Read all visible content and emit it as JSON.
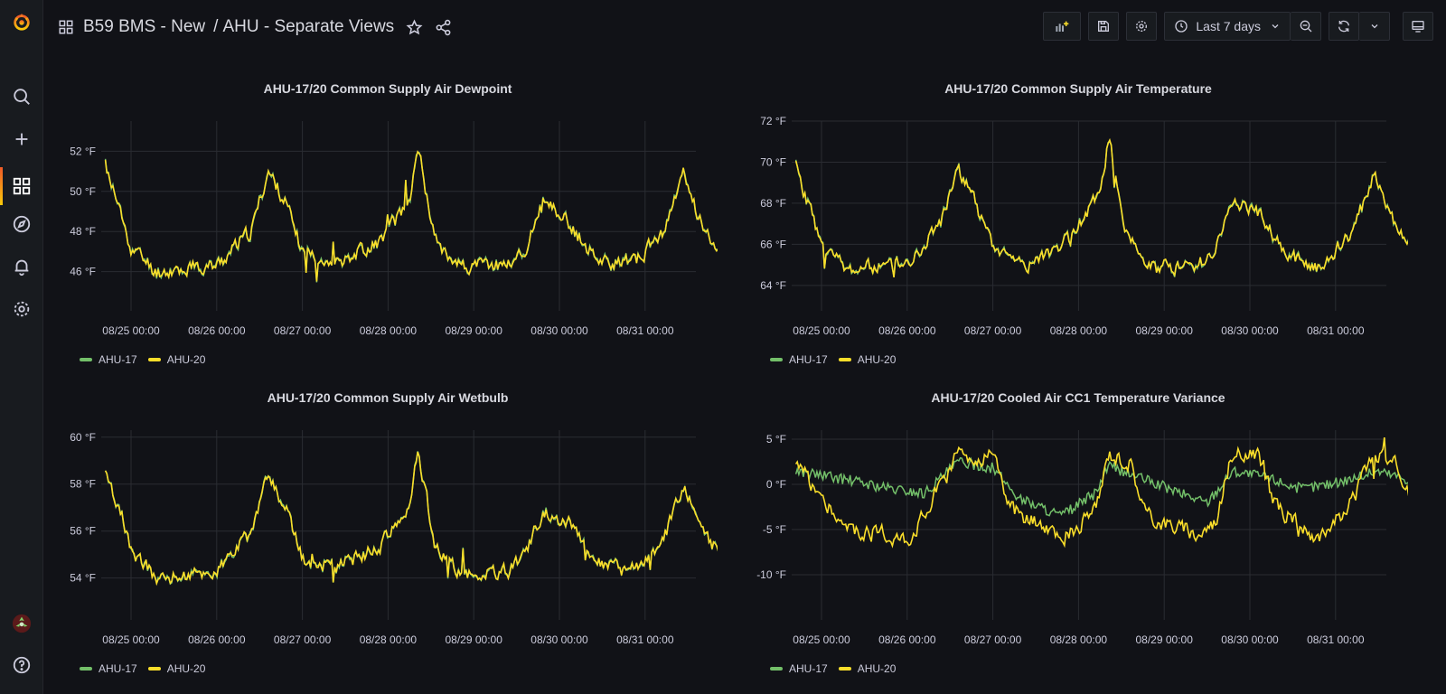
{
  "header": {
    "folder": "B59 BMS - New",
    "separator": "/",
    "dashboard": "AHU - Separate Views",
    "time_range": "Last 7 days"
  },
  "icons": {
    "logo": "grafana-logo",
    "apps": "apps-icon",
    "star": "star-icon",
    "share": "share-icon",
    "add_panel": "add-panel-icon",
    "save": "save-icon",
    "settings": "gear-icon",
    "clock": "clock-icon",
    "zoom_out": "zoom-out-icon",
    "refresh": "refresh-icon",
    "tv": "tv-mode-icon"
  },
  "sidebar": {
    "items": [
      "search-icon",
      "plus-icon",
      "dashboards-icon",
      "explore-icon",
      "alerting-icon",
      "gear-icon"
    ],
    "bottom": [
      "avatar",
      "help-icon"
    ]
  },
  "colors": {
    "ahu17": "#73bf69",
    "ahu20": "#fade2a",
    "accent": "#f05a28"
  },
  "panels": [
    {
      "title": "AHU-17/20 Common Supply Air Dewpoint",
      "legend": [
        "AHU-17",
        "AHU-20"
      ],
      "chart_data": {
        "type": "line",
        "x_ticks": [
          "08/25 00:00",
          "08/26 00:00",
          "08/27 00:00",
          "08/28 00:00",
          "08/29 00:00",
          "08/30 00:00",
          "08/31 00:00"
        ],
        "y_ticks": [
          "46 °F",
          "48 °F",
          "50 °F",
          "52 °F"
        ],
        "ylim": [
          44.5,
          53.5
        ],
        "series": [
          {
            "name": "AHU-17",
            "color": "#73bf69"
          },
          {
            "name": "AHU-20",
            "color": "#fade2a"
          }
        ],
        "profile": [
          [
            -0.3,
            51.3
          ],
          [
            0.0,
            47.2
          ],
          [
            0.3,
            46.0
          ],
          [
            1.0,
            46.3
          ],
          [
            1.4,
            48.0
          ],
          [
            1.6,
            51.0
          ],
          [
            1.8,
            49.5
          ],
          [
            2.0,
            47.0
          ],
          [
            2.4,
            46.5
          ],
          [
            2.9,
            47.5
          ],
          [
            3.25,
            49.5
          ],
          [
            3.35,
            52.3
          ],
          [
            3.55,
            47.5
          ],
          [
            3.9,
            46.2
          ],
          [
            4.4,
            46.4
          ],
          [
            4.6,
            47.0
          ],
          [
            4.8,
            49.5
          ],
          [
            5.1,
            48.5
          ],
          [
            5.4,
            46.8
          ],
          [
            5.8,
            46.2
          ],
          [
            6.2,
            47.8
          ],
          [
            6.45,
            50.8
          ],
          [
            6.7,
            48.0
          ],
          [
            7.0,
            46.8
          ],
          [
            7.5,
            46.8
          ],
          [
            7.7,
            49.8
          ],
          [
            8.0,
            50.0
          ],
          [
            8.2,
            47.8
          ],
          [
            8.4,
            46.2
          ],
          [
            9.0,
            46.4
          ],
          [
            9.3,
            47.5
          ],
          [
            9.6,
            52.5
          ],
          [
            9.85,
            48.5
          ],
          [
            10.1,
            47.0
          ],
          [
            10.6,
            47.0
          ],
          [
            10.9,
            47.5
          ],
          [
            11.0,
            51.6
          ],
          [
            11.15,
            48.8
          ]
        ],
        "noise": 0.6,
        "seed": 11
      }
    },
    {
      "title": "AHU-17/20 Common Supply Air Temperature",
      "legend": [
        "AHU-17",
        "AHU-20"
      ],
      "chart_data": {
        "type": "line",
        "x_ticks": [
          "08/25 00:00",
          "08/26 00:00",
          "08/27 00:00",
          "08/28 00:00",
          "08/29 00:00",
          "08/30 00:00",
          "08/31 00:00"
        ],
        "y_ticks": [
          "64 °F",
          "66 °F",
          "68 °F",
          "70 °F",
          "72 °F"
        ],
        "ylim": [
          63.2,
          72.0
        ],
        "series": [
          {
            "name": "AHU-17",
            "color": "#73bf69"
          },
          {
            "name": "AHU-20",
            "color": "#fade2a"
          }
        ],
        "profile": [
          [
            -0.3,
            69.8
          ],
          [
            0.0,
            66.0
          ],
          [
            0.3,
            64.8
          ],
          [
            1.0,
            65.0
          ],
          [
            1.4,
            67.2
          ],
          [
            1.6,
            69.7
          ],
          [
            1.8,
            68.0
          ],
          [
            2.0,
            65.8
          ],
          [
            2.4,
            65.0
          ],
          [
            2.9,
            66.3
          ],
          [
            3.25,
            68.5
          ],
          [
            3.35,
            71.2
          ],
          [
            3.55,
            66.5
          ],
          [
            3.9,
            64.8
          ],
          [
            4.4,
            65.0
          ],
          [
            4.6,
            65.8
          ],
          [
            4.8,
            68.2
          ],
          [
            5.1,
            67.5
          ],
          [
            5.4,
            65.5
          ],
          [
            5.8,
            64.9
          ],
          [
            6.2,
            66.5
          ],
          [
            6.45,
            69.5
          ],
          [
            6.7,
            67.0
          ],
          [
            7.0,
            65.2
          ],
          [
            7.5,
            65.4
          ],
          [
            7.7,
            68.0
          ],
          [
            8.0,
            68.2
          ],
          [
            8.2,
            66.3
          ],
          [
            8.4,
            65.0
          ],
          [
            9.0,
            65.0
          ],
          [
            9.3,
            66.0
          ],
          [
            9.6,
            70.9
          ],
          [
            9.85,
            67.0
          ],
          [
            10.1,
            65.3
          ],
          [
            10.6,
            65.4
          ],
          [
            10.9,
            66.0
          ],
          [
            11.0,
            70.1
          ],
          [
            11.15,
            67.3
          ]
        ],
        "noise": 0.55,
        "seed": 23
      }
    },
    {
      "title": "AHU-17/20 Common Supply Air Wetbulb",
      "legend": [
        "AHU-17",
        "AHU-20"
      ],
      "chart_data": {
        "type": "line",
        "x_ticks": [
          "08/25 00:00",
          "08/26 00:00",
          "08/27 00:00",
          "08/28 00:00",
          "08/29 00:00",
          "08/30 00:00",
          "08/31 00:00"
        ],
        "y_ticks": [
          "54 °F",
          "56 °F",
          "58 °F",
          "60 °F"
        ],
        "ylim": [
          52.6,
          60.3
        ],
        "series": [
          {
            "name": "AHU-17",
            "color": "#73bf69"
          },
          {
            "name": "AHU-20",
            "color": "#fade2a"
          }
        ],
        "profile": [
          [
            -0.3,
            58.5
          ],
          [
            0.0,
            55.2
          ],
          [
            0.3,
            54.0
          ],
          [
            1.0,
            54.3
          ],
          [
            1.4,
            56.0
          ],
          [
            1.6,
            58.3
          ],
          [
            1.8,
            57.0
          ],
          [
            2.0,
            54.8
          ],
          [
            2.4,
            54.5
          ],
          [
            2.9,
            55.3
          ],
          [
            3.25,
            57.0
          ],
          [
            3.35,
            59.5
          ],
          [
            3.55,
            55.3
          ],
          [
            3.9,
            54.1
          ],
          [
            4.4,
            54.3
          ],
          [
            4.6,
            55.0
          ],
          [
            4.8,
            56.8
          ],
          [
            5.1,
            56.5
          ],
          [
            5.4,
            54.8
          ],
          [
            5.8,
            54.2
          ],
          [
            6.2,
            55.5
          ],
          [
            6.45,
            57.8
          ],
          [
            6.7,
            55.8
          ],
          [
            7.0,
            54.6
          ],
          [
            7.5,
            54.6
          ],
          [
            7.7,
            56.8
          ],
          [
            8.0,
            57.0
          ],
          [
            8.2,
            55.5
          ],
          [
            8.4,
            54.3
          ],
          [
            9.0,
            54.4
          ],
          [
            9.3,
            55.3
          ],
          [
            9.6,
            59.4
          ],
          [
            9.85,
            56.0
          ],
          [
            10.1,
            54.8
          ],
          [
            10.6,
            54.8
          ],
          [
            10.9,
            55.2
          ],
          [
            11.0,
            58.8
          ],
          [
            11.15,
            56.3
          ]
        ],
        "noise": 0.5,
        "seed": 37
      }
    },
    {
      "title": "AHU-17/20 Cooled Air CC1 Temperature Variance",
      "legend": [
        "AHU-17",
        "AHU-20"
      ],
      "chart_data": {
        "type": "line",
        "x_ticks": [
          "08/25 00:00",
          "08/26 00:00",
          "08/27 00:00",
          "08/28 00:00",
          "08/29 00:00",
          "08/30 00:00",
          "08/31 00:00"
        ],
        "y_ticks": [
          "-10 °F",
          "-5 °F",
          "0 °F",
          "5 °F"
        ],
        "ylim": [
          -14.0,
          6.0
        ],
        "series": [
          {
            "name": "AHU-17",
            "color": "#73bf69"
          },
          {
            "name": "AHU-20",
            "color": "#fade2a"
          }
        ],
        "profile": [
          [
            -0.3,
            2.5
          ],
          [
            0.0,
            -1.5
          ],
          [
            0.3,
            -5.0
          ],
          [
            1.0,
            -6.0
          ],
          [
            1.3,
            -2.0
          ],
          [
            1.6,
            3.5
          ],
          [
            2.0,
            3.0
          ],
          [
            2.2,
            -2.5
          ],
          [
            2.8,
            -6.0
          ],
          [
            3.2,
            -3.0
          ],
          [
            3.35,
            3.5
          ],
          [
            3.6,
            2.5
          ],
          [
            3.8,
            -3.5
          ],
          [
            4.4,
            -5.5
          ],
          [
            4.6,
            -4.0
          ],
          [
            4.8,
            3.5
          ],
          [
            5.1,
            3.0
          ],
          [
            5.3,
            -2.5
          ],
          [
            5.8,
            -6.0
          ],
          [
            6.2,
            -2.0
          ],
          [
            6.45,
            3.5
          ],
          [
            6.7,
            2.0
          ],
          [
            6.9,
            -2.5
          ],
          [
            7.5,
            -5.0
          ],
          [
            7.7,
            3.0
          ],
          [
            8.0,
            3.5
          ],
          [
            8.2,
            -2.5
          ],
          [
            8.6,
            -4.5
          ],
          [
            9.0,
            -5.0
          ],
          [
            9.3,
            -1.5
          ],
          [
            9.6,
            3.5
          ],
          [
            9.85,
            -1.5
          ],
          [
            10.1,
            -4.0
          ],
          [
            10.6,
            -4.5
          ],
          [
            10.9,
            -2.0
          ],
          [
            11.0,
            2.5
          ],
          [
            11.15,
            1.5
          ]
        ],
        "green_profile": [
          [
            -0.3,
            1.5
          ],
          [
            0.3,
            0.5
          ],
          [
            0.8,
            -0.5
          ],
          [
            1.2,
            -1.0
          ],
          [
            1.6,
            2.5
          ],
          [
            2.0,
            1.8
          ],
          [
            2.3,
            -1.5
          ],
          [
            2.8,
            -3.5
          ],
          [
            3.2,
            -1.0
          ],
          [
            3.35,
            2.0
          ],
          [
            3.7,
            0.8
          ],
          [
            4.2,
            -1.0
          ],
          [
            4.5,
            -2.0
          ],
          [
            4.8,
            1.5
          ],
          [
            5.2,
            0.8
          ],
          [
            5.6,
            -0.5
          ],
          [
            6.0,
            0.2
          ],
          [
            6.5,
            1.5
          ],
          [
            7.0,
            0.2
          ],
          [
            7.6,
            -0.3
          ],
          [
            8.0,
            1.2
          ],
          [
            8.5,
            0.0
          ],
          [
            9.0,
            -0.3
          ],
          [
            9.6,
            1.0
          ],
          [
            10.2,
            -0.3
          ],
          [
            10.6,
            -0.2
          ],
          [
            11.0,
            1.0
          ],
          [
            11.15,
            0.0
          ]
        ],
        "noise": 1.5,
        "seed": 51
      }
    }
  ]
}
